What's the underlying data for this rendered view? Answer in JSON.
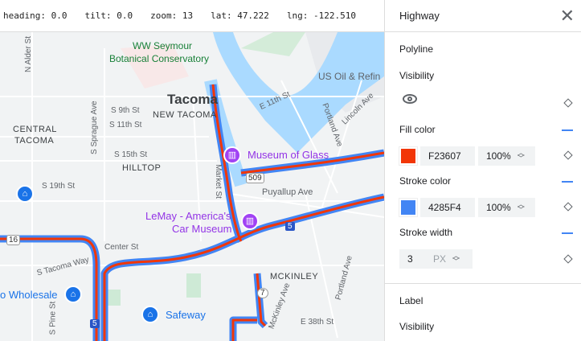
{
  "status": {
    "heading": "heading: 0.0",
    "tilt": "tilt: 0.0",
    "zoom": "zoom: 13",
    "lat": "lat: 47.222",
    "lng": "lng: -122.510"
  },
  "map": {
    "labels": {
      "alder": "N Alder St",
      "conservatory1": "WW Seymour",
      "conservatory2": "Botanical Conservatory",
      "usoil": "US Oil & Refin",
      "tacoma": "Tacoma",
      "newtacoma": "NEW TACOMA",
      "s9": "S 9th St",
      "s11": "S 11th St",
      "sprague": "S Sprague Ave",
      "central1": "CENTRAL",
      "central2": "TACOMA",
      "e11": "E 11th St",
      "s15": "S 15th St",
      "hilltop": "HILLTOP",
      "market": "Market St",
      "glass": "Museum of Glass",
      "portland": "Portland Ave",
      "lincoln": "Lincoln Ave",
      "s19": "S 19th St",
      "r509": "509",
      "puyallup": "Puyallup Ave",
      "lemay1": "LeMay - America's",
      "lemay2": "Car Museum",
      "r16": "16",
      "center": "Center St",
      "stacoma": "S Tacoma Way",
      "r5": "5",
      "mckinley": "MCKINLEY",
      "wholesale": "o Wholesale",
      "r7": "7",
      "pine": "S Pine St",
      "safeway": "Safeway",
      "e38": "E 38th St",
      "mckinleyave": "McKinley Ave",
      "portland2": "Portland Ave"
    },
    "polyline_fill": "#F23607",
    "polyline_stroke": "#4285F4"
  },
  "panel": {
    "title": "Highway",
    "polyline": "Polyline",
    "visibility": "Visibility",
    "fill_label": "Fill color",
    "fill_hex": "F23607",
    "fill_opacity": "100%",
    "fill_color": "#F23607",
    "stroke_label": "Stroke color",
    "stroke_hex": "4285F4",
    "stroke_opacity": "100%",
    "stroke_color": "#4285F4",
    "width_label": "Stroke width",
    "width_value": "3",
    "width_unit": "PX",
    "label_section": "Label",
    "label_visibility": "Visibility"
  }
}
